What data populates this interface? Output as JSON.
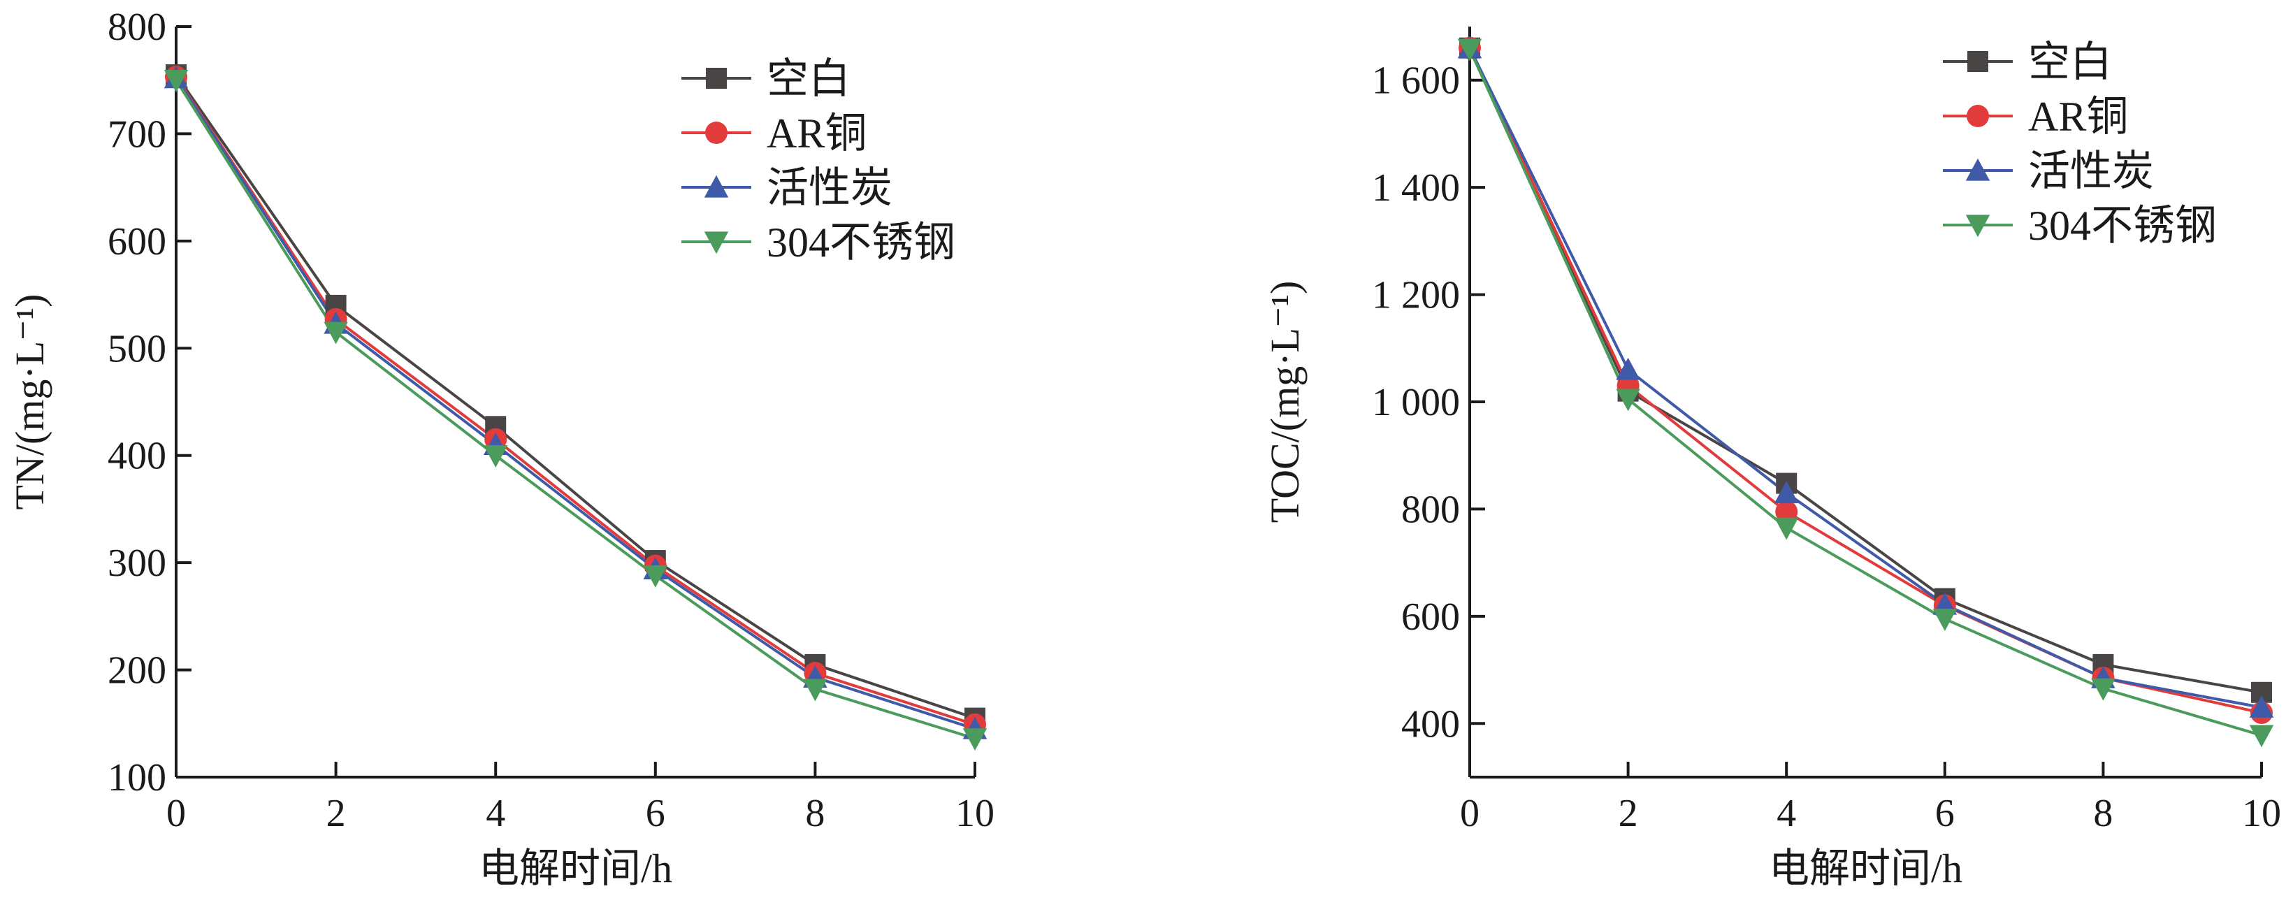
{
  "colors": {
    "空白": "#4a4545",
    "AR铜": "#e23b3b",
    "活性炭": "#3f5aa8",
    "304不锈钢": "#4b9b5c",
    "axis": "#1a1a1a"
  },
  "chart_data": [
    {
      "type": "line",
      "xlabel": "电解时间/h",
      "ylabel": "TN/(mg·L⁻¹)",
      "x": [
        0,
        2,
        4,
        6,
        8,
        10
      ],
      "xlim": [
        0,
        10
      ],
      "ylim": [
        100,
        800
      ],
      "xticks": [
        0,
        2,
        4,
        6,
        8,
        10
      ],
      "yticks": [
        100,
        200,
        300,
        400,
        500,
        600,
        700,
        800
      ],
      "xtick_labels": [
        "0",
        "2",
        "4",
        "6",
        "8",
        "10"
      ],
      "ytick_labels": [
        "100",
        "200",
        "300",
        "400",
        "500",
        "600",
        "700",
        "800"
      ],
      "grid": false,
      "legend_position": "top-right",
      "series": [
        {
          "name": "空白",
          "marker": "square",
          "values": [
            755,
            540,
            427,
            302,
            205,
            155
          ]
        },
        {
          "name": "AR铜",
          "marker": "circle",
          "values": [
            753,
            527,
            415,
            297,
            197,
            149
          ]
        },
        {
          "name": "活性炭",
          "marker": "triangle-up",
          "values": [
            752,
            523,
            410,
            294,
            193,
            145
          ]
        },
        {
          "name": "304不锈钢",
          "marker": "triangle-down",
          "values": [
            750,
            515,
            400,
            288,
            182,
            136
          ]
        }
      ]
    },
    {
      "type": "line",
      "xlabel": "电解时间/h",
      "ylabel": "TOC/(mg·L⁻¹)",
      "x": [
        0,
        2,
        4,
        6,
        8,
        10
      ],
      "xlim": [
        0,
        10
      ],
      "ylim": [
        300,
        1700
      ],
      "xticks": [
        0,
        2,
        4,
        6,
        8,
        10
      ],
      "yticks": [
        400,
        600,
        800,
        1000,
        1200,
        1400,
        1600
      ],
      "xtick_labels": [
        "0",
        "2",
        "4",
        "6",
        "8",
        "10"
      ],
      "ytick_labels": [
        "400",
        "600",
        "800",
        "1 000",
        "1 200",
        "1 400",
        "1 600"
      ],
      "grid": false,
      "legend_position": "top-right",
      "series": [
        {
          "name": "空白",
          "marker": "square",
          "values": [
            1660,
            1020,
            848,
            633,
            510,
            458
          ]
        },
        {
          "name": "AR铜",
          "marker": "circle",
          "values": [
            1660,
            1030,
            795,
            620,
            485,
            420
          ]
        },
        {
          "name": "活性炭",
          "marker": "triangle-up",
          "values": [
            1660,
            1060,
            830,
            622,
            485,
            430
          ]
        },
        {
          "name": "304不锈钢",
          "marker": "triangle-down",
          "values": [
            1658,
            1005,
            765,
            595,
            465,
            378
          ]
        }
      ]
    }
  ]
}
